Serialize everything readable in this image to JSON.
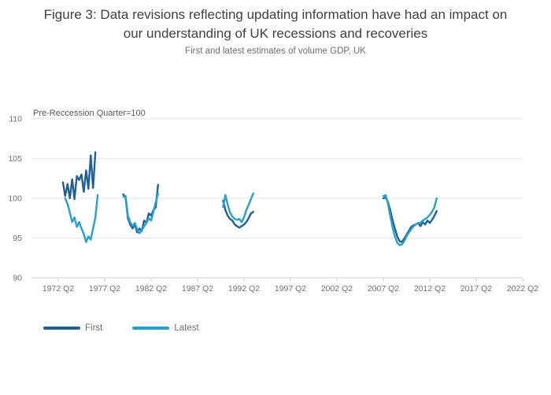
{
  "figure": {
    "title": "Figure 3: Data revisions reflecting updating information have had an impact on our understanding of UK recessions and recoveries",
    "subtitle": "First and latest estimates of volume GDP, UK"
  },
  "chart_data": {
    "type": "line",
    "title": "Figure 3: Data revisions reflecting updating information have had an impact on our understanding of UK recessions and recoveries",
    "subtitle": "First and latest estimates of volume GDP, UK",
    "y_axis": {
      "label": "Pre-Reccession Quarter=100",
      "ticks": [
        90,
        95,
        100,
        105,
        110
      ],
      "range": [
        90,
        110
      ],
      "gridlines": true
    },
    "x_axis": {
      "tick_labels": [
        "1972 Q2",
        "1977 Q2",
        "1982 Q2",
        "1987 Q2",
        "1992 Q2",
        "1997 Q2",
        "2002 Q2",
        "2007 Q2",
        "2012 Q2",
        "2017 Q2",
        "2022 Q2"
      ],
      "tick_years": [
        1972.25,
        1977.25,
        1982.25,
        1987.25,
        1992.25,
        1997.25,
        2002.25,
        2007.25,
        2012.25,
        2017.25,
        2022.25
      ],
      "range": [
        1969.37,
        2022.25
      ]
    },
    "legend": {
      "position": "bottom-left",
      "items": [
        {
          "label": "First",
          "color": "#206095"
        },
        {
          "label": "Latest",
          "color": "#27A0CC"
        }
      ]
    },
    "colors": {
      "first": "#206095",
      "latest": "#27A0CC",
      "gridline": "#e2e2e2",
      "axis_line": "#c9ced3",
      "tick_text": "#707070",
      "title_text": "#414042"
    },
    "series": [
      {
        "name": "First",
        "color": "#206095",
        "segments": [
          {
            "start_year": 1972.75,
            "quarter_step": 0.25,
            "values": [
              102.0,
              100.3,
              101.8,
              100.0,
              102.4,
              99.9,
              102.8,
              102.3,
              103.0,
              100.8,
              103.5,
              101.2,
              105.4,
              101.3,
              105.8
            ]
          },
          {
            "start_year": 1979.25,
            "quarter_step": 0.25,
            "values": [
              100.5,
              100.1,
              97.5,
              96.7,
              96.2,
              96.7,
              95.7,
              96.2,
              95.9,
              97.2,
              96.9,
              98.1,
              97.8,
              98.5,
              98.9,
              101.7
            ]
          },
          {
            "start_year": 1990.0,
            "quarter_step": 0.25,
            "values": [
              99.7,
              98.5,
              97.8,
              97.4,
              97.2,
              96.7,
              96.5,
              96.3,
              96.5,
              96.7,
              97.0,
              97.5,
              98.1,
              98.3
            ]
          },
          {
            "start_year": 2007.25,
            "quarter_step": 0.25,
            "values": [
              100.0,
              100.1,
              99.5,
              98.5,
              97.2,
              96.2,
              95.2,
              94.6,
              94.5,
              94.9,
              95.4,
              95.9,
              96.4,
              96.6,
              96.7,
              96.9,
              96.5,
              97.0,
              96.7,
              97.2,
              96.9,
              97.3,
              97.8,
              98.4
            ]
          }
        ]
      },
      {
        "name": "Latest",
        "color": "#27A0CC",
        "segments": [
          {
            "start_year": 1973.0,
            "quarter_step": 0.25,
            "values": [
              100.0,
              99.3,
              98.2,
              97.0,
              97.6,
              96.4,
              97.0,
              96.2,
              95.5,
              94.5,
              95.2,
              94.8,
              96.2,
              97.6,
              100.4
            ]
          },
          {
            "start_year": 1979.25,
            "quarter_step": 0.25,
            "values": [
              100.2,
              100.3,
              97.8,
              97.0,
              96.5,
              96.9,
              96.1,
              95.6,
              96.0,
              96.5,
              96.9,
              97.5,
              97.2,
              98.3,
              99.5,
              100.6
            ]
          },
          {
            "start_year": 1990.0,
            "quarter_step": 0.25,
            "values": [
              98.9,
              100.4,
              99.2,
              98.2,
              97.7,
              97.4,
              97.3,
              97.4,
              97.0,
              97.6,
              98.5,
              99.2,
              99.9,
              100.6
            ]
          },
          {
            "start_year": 2007.25,
            "quarter_step": 0.25,
            "values": [
              100.3,
              100.4,
              99.3,
              97.8,
              96.3,
              95.2,
              94.4,
              94.1,
              94.2,
              94.6,
              95.2,
              95.7,
              96.1,
              96.5,
              96.7,
              96.9,
              96.9,
              97.2,
              97.4,
              97.6,
              97.9,
              98.3,
              98.9,
              100.0
            ]
          }
        ]
      }
    ]
  }
}
